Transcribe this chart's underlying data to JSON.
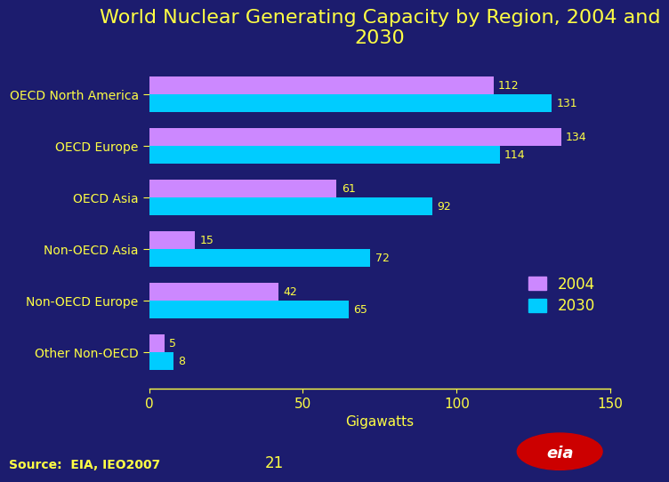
{
  "title": "World Nuclear Generating Capacity by Region, 2004 and\n2030",
  "categories": [
    "Other Non-OECD",
    "Non-OECD Europe",
    "Non-OECD Asia",
    "OECD Asia",
    "OECD Europe",
    "OECD North America"
  ],
  "values_2004": [
    5,
    42,
    15,
    61,
    134,
    112
  ],
  "values_2030": [
    8,
    65,
    72,
    92,
    114,
    131
  ],
  "color_2004": "#cc88ff",
  "color_2030": "#00ccff",
  "xlabel": "Gigawatts",
  "xlim": [
    0,
    150
  ],
  "xticks": [
    0,
    50,
    100,
    150
  ],
  "background_color": "#1c1c6e",
  "title_color": "#ffff44",
  "label_color": "#ffff44",
  "tick_color": "#ffff44",
  "annotation_color": "#ffff44",
  "legend_labels": [
    "2004",
    "2030"
  ],
  "source_text": "Source:  EIA, IEO2007",
  "page_number": "21",
  "title_fontsize": 16,
  "axis_label_fontsize": 11,
  "tick_fontsize": 11,
  "bar_label_fontsize": 9,
  "legend_fontsize": 12,
  "category_fontsize": 10
}
